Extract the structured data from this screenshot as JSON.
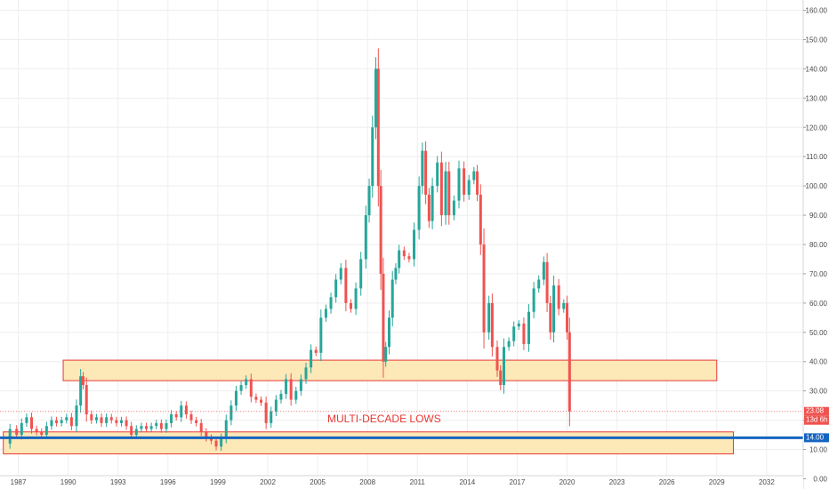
{
  "chart_data": {
    "type": "candlestick",
    "title": "",
    "xlabel": "",
    "ylabel": "",
    "xlim": [
      1985.9,
      2034.2
    ],
    "ylim": [
      -3.5,
      163.5
    ],
    "grid": true,
    "x_ticks": [
      "1987",
      "1990",
      "1993",
      "1996",
      "1999",
      "2002",
      "2005",
      "2008",
      "2011",
      "2014",
      "2017",
      "2020",
      "2023",
      "2026",
      "2029",
      "2032"
    ],
    "y_ticks": [
      "0.00",
      "10.00",
      "20.00",
      "30.00",
      "40.00",
      "50.00",
      "60.00",
      "70.00",
      "80.00",
      "90.00",
      "100.00",
      "110.00",
      "120.00",
      "130.00",
      "140.00",
      "150.00",
      "160.00"
    ],
    "series": [
      {
        "values": [
          [
            1986.5,
            12,
            17
          ],
          [
            1986.9,
            17,
            15
          ],
          [
            1987.2,
            15,
            19
          ],
          [
            1987.5,
            19,
            21
          ],
          [
            1987.8,
            21,
            17
          ],
          [
            1988.1,
            17,
            16
          ],
          [
            1988.4,
            16,
            15
          ],
          [
            1988.7,
            15,
            18
          ],
          [
            1989.0,
            18,
            20
          ],
          [
            1989.3,
            20,
            19
          ],
          [
            1989.6,
            19,
            20
          ],
          [
            1989.9,
            20,
            21
          ],
          [
            1990.2,
            21,
            18
          ],
          [
            1990.5,
            18,
            25
          ],
          [
            1990.75,
            25,
            35
          ],
          [
            1990.9,
            35,
            32
          ],
          [
            1991.1,
            32,
            22
          ],
          [
            1991.4,
            22,
            20
          ],
          [
            1991.7,
            20,
            21
          ],
          [
            1992.0,
            21,
            19
          ],
          [
            1992.3,
            19,
            21
          ],
          [
            1992.6,
            21,
            20
          ],
          [
            1992.9,
            20,
            19
          ],
          [
            1993.2,
            19,
            20
          ],
          [
            1993.5,
            20,
            18
          ],
          [
            1993.8,
            18,
            15
          ],
          [
            1994.1,
            15,
            17
          ],
          [
            1994.4,
            17,
            18
          ],
          [
            1994.7,
            18,
            17
          ],
          [
            1995.0,
            17,
            18
          ],
          [
            1995.3,
            18,
            19
          ],
          [
            1995.6,
            19,
            17
          ],
          [
            1995.9,
            17,
            19
          ],
          [
            1996.2,
            19,
            22
          ],
          [
            1996.5,
            22,
            21
          ],
          [
            1996.8,
            21,
            25
          ],
          [
            1997.1,
            25,
            22
          ],
          [
            1997.4,
            22,
            20
          ],
          [
            1997.7,
            20,
            19
          ],
          [
            1998.0,
            19,
            16
          ],
          [
            1998.3,
            16,
            14
          ],
          [
            1998.6,
            14,
            13
          ],
          [
            1998.9,
            13,
            11
          ],
          [
            1999.2,
            11,
            14
          ],
          [
            1999.5,
            14,
            20
          ],
          [
            1999.8,
            20,
            25
          ],
          [
            2000.1,
            25,
            30
          ],
          [
            2000.4,
            30,
            32
          ],
          [
            2000.7,
            32,
            34
          ],
          [
            2001.0,
            34,
            28
          ],
          [
            2001.3,
            28,
            27
          ],
          [
            2001.6,
            27,
            26
          ],
          [
            2001.9,
            26,
            19
          ],
          [
            2002.2,
            19,
            23
          ],
          [
            2002.5,
            23,
            27
          ],
          [
            2002.8,
            27,
            29
          ],
          [
            2003.1,
            29,
            34
          ],
          [
            2003.4,
            34,
            27
          ],
          [
            2003.7,
            27,
            30
          ],
          [
            2004.0,
            30,
            34
          ],
          [
            2004.3,
            34,
            38
          ],
          [
            2004.6,
            38,
            44
          ],
          [
            2004.9,
            44,
            43
          ],
          [
            2005.2,
            43,
            55
          ],
          [
            2005.5,
            55,
            58
          ],
          [
            2005.8,
            58,
            62
          ],
          [
            2006.1,
            62,
            68
          ],
          [
            2006.4,
            68,
            72
          ],
          [
            2006.7,
            72,
            60
          ],
          [
            2007.0,
            60,
            58
          ],
          [
            2007.3,
            58,
            65
          ],
          [
            2007.6,
            65,
            75
          ],
          [
            2007.9,
            75,
            90
          ],
          [
            2008.1,
            90,
            100
          ],
          [
            2008.3,
            100,
            120
          ],
          [
            2008.5,
            120,
            140
          ],
          [
            2008.65,
            140,
            100
          ],
          [
            2008.8,
            100,
            70
          ],
          [
            2008.95,
            70,
            40
          ],
          [
            2009.1,
            40,
            45
          ],
          [
            2009.3,
            45,
            55
          ],
          [
            2009.5,
            55,
            68
          ],
          [
            2009.7,
            68,
            72
          ],
          [
            2009.9,
            72,
            78
          ],
          [
            2010.2,
            78,
            76
          ],
          [
            2010.5,
            76,
            75
          ],
          [
            2010.8,
            75,
            85
          ],
          [
            2011.1,
            85,
            100
          ],
          [
            2011.3,
            100,
            112
          ],
          [
            2011.5,
            112,
            97
          ],
          [
            2011.7,
            97,
            88
          ],
          [
            2011.9,
            88,
            100
          ],
          [
            2012.2,
            100,
            108
          ],
          [
            2012.45,
            108,
            90
          ],
          [
            2012.7,
            90,
            105
          ],
          [
            2012.9,
            105,
            90
          ],
          [
            2013.2,
            90,
            95
          ],
          [
            2013.5,
            95,
            106
          ],
          [
            2013.8,
            106,
            97
          ],
          [
            2014.1,
            97,
            102
          ],
          [
            2014.4,
            102,
            105
          ],
          [
            2014.6,
            105,
            97
          ],
          [
            2014.8,
            97,
            80
          ],
          [
            2015.0,
            80,
            50
          ],
          [
            2015.3,
            50,
            60
          ],
          [
            2015.5,
            60,
            45
          ],
          [
            2015.8,
            45,
            37
          ],
          [
            2016.0,
            37,
            32
          ],
          [
            2016.2,
            32,
            45
          ],
          [
            2016.5,
            45,
            47
          ],
          [
            2016.8,
            47,
            52
          ],
          [
            2017.1,
            52,
            53
          ],
          [
            2017.4,
            53,
            46
          ],
          [
            2017.7,
            46,
            57
          ],
          [
            2018.0,
            57,
            65
          ],
          [
            2018.3,
            65,
            68
          ],
          [
            2018.6,
            68,
            74
          ],
          [
            2018.8,
            74,
            60
          ],
          [
            2019.0,
            60,
            50
          ],
          [
            2019.2,
            50,
            66
          ],
          [
            2019.5,
            66,
            58
          ],
          [
            2019.8,
            58,
            60
          ],
          [
            2020.0,
            60,
            50
          ],
          [
            2020.15,
            50,
            23
          ]
        ]
      }
    ],
    "zones": [
      {
        "x0": 1989.7,
        "x1": 2029.0,
        "y0": 33.5,
        "y1": 40.5
      },
      {
        "x0": 1986.1,
        "x1": 2030.0,
        "y0": 8.5,
        "y1": 16.0
      }
    ],
    "hline_value": 14.0,
    "annotation": "MULTI-DECADE LOWS",
    "annotation_x": 2009.0,
    "annotation_y": 19.3,
    "last_price": "23.08",
    "countdown": "13d 6h",
    "hline_label": "14.00",
    "colors": {
      "up": "#26a69a",
      "down": "#ef5350",
      "zone_fill": "#fde8b8",
      "zone_stroke": "#e53935",
      "hline": "#1565c0",
      "grid": "#eeeeee",
      "price_line": "#ef5350"
    }
  }
}
